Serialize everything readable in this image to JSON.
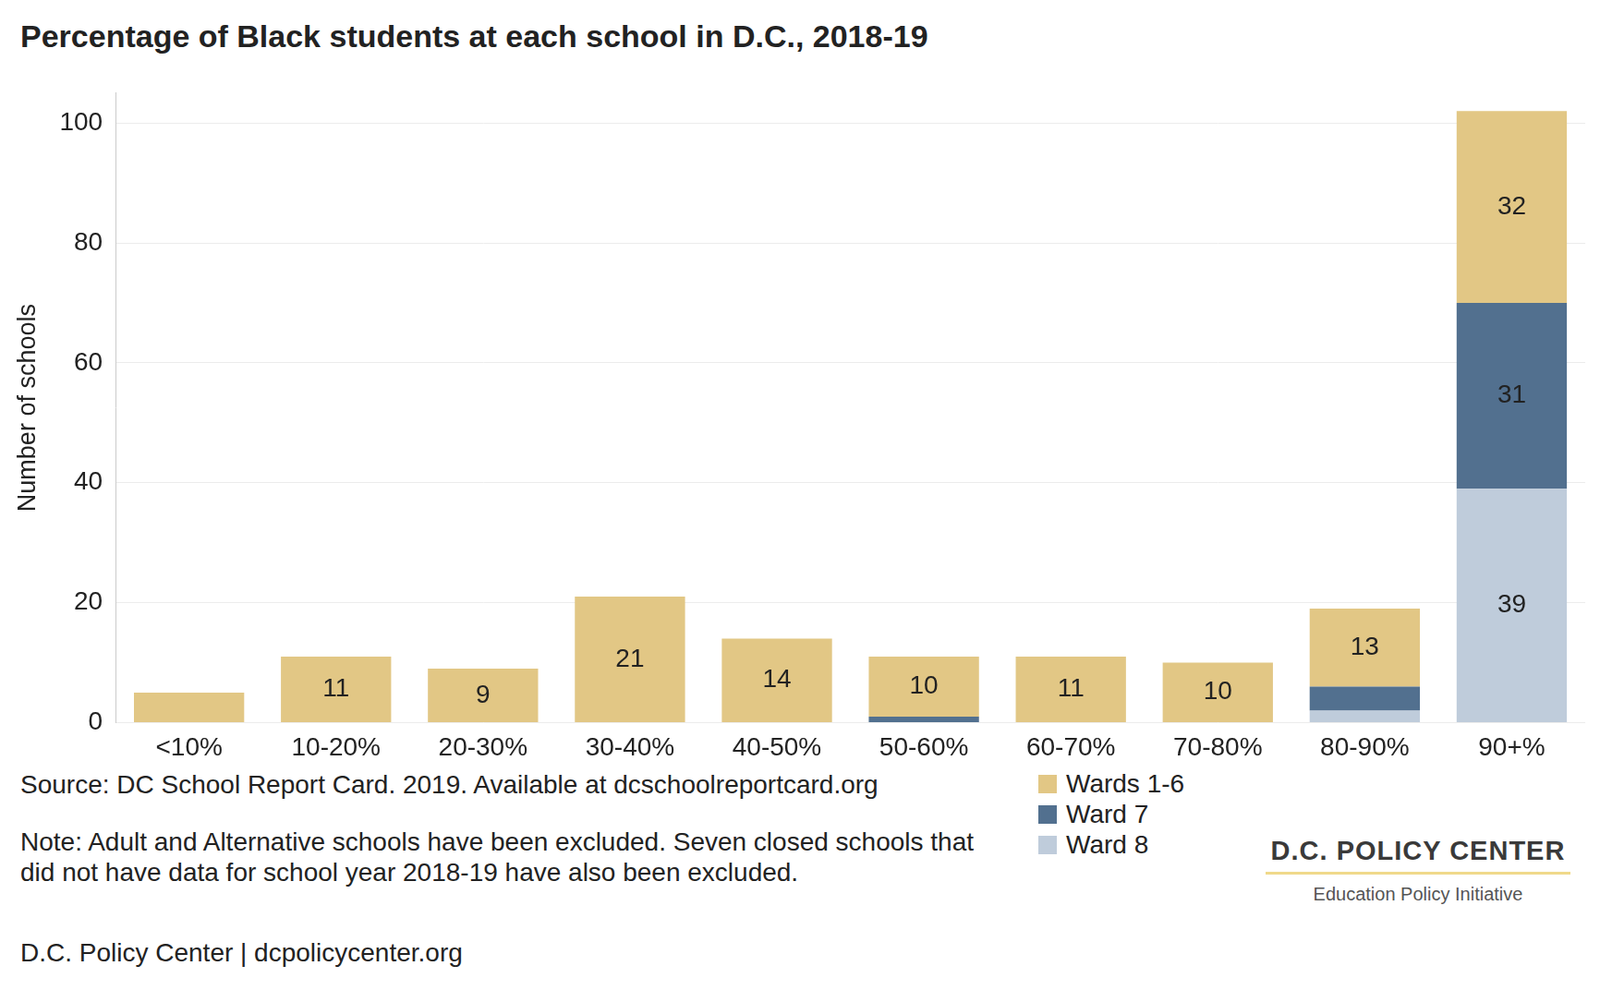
{
  "chart_data": {
    "type": "bar",
    "title": "Percentage of Black students at each school in D.C., 2018-19",
    "y_label": "Number of schools",
    "categories": [
      "<10%",
      "10-20%",
      "20-30%",
      "30-40%",
      "40-50%",
      "50-60%",
      "60-70%",
      "70-80%",
      "80-90%",
      "90+%"
    ],
    "series": [
      {
        "name": "Wards 1-6",
        "color": "#E2C785",
        "values": [
          5,
          11,
          9,
          21,
          14,
          10,
          11,
          10,
          13,
          32
        ],
        "value_labels": [
          null,
          "11",
          "9",
          "21",
          "14",
          "10",
          "11",
          "10",
          "13",
          "32"
        ]
      },
      {
        "name": "Ward 7",
        "color": "#52708F",
        "values": [
          0,
          0,
          0,
          0,
          0,
          1,
          0,
          0,
          4,
          31
        ],
        "value_labels": [
          null,
          null,
          null,
          null,
          null,
          null,
          null,
          null,
          null,
          "31"
        ]
      },
      {
        "name": "Ward 8",
        "color": "#BFCCDB",
        "values": [
          0,
          0,
          0,
          0,
          0,
          0,
          0,
          0,
          2,
          39
        ],
        "value_labels": [
          null,
          null,
          null,
          null,
          null,
          null,
          null,
          null,
          null,
          "39"
        ]
      }
    ],
    "stacked": true,
    "data_labels": true,
    "ylim": [
      0,
      105
    ],
    "yticks": [
      0,
      20,
      40,
      60,
      80,
      100
    ],
    "grid": true,
    "legend": "bottom",
    "source": "Source: DC School Report Card. 2019. Available at dcschoolreportcard.org",
    "note": "Note: Adult and Alternative schools have been excluded. Seven closed schools that did not have data for school year 2018-19 have also been excluded.",
    "credit": "D.C. Policy Center | dcpolicycenter.org",
    "logo": {
      "title": "D.C. POLICY CENTER",
      "subtitle": "Education Policy Initiative"
    }
  }
}
